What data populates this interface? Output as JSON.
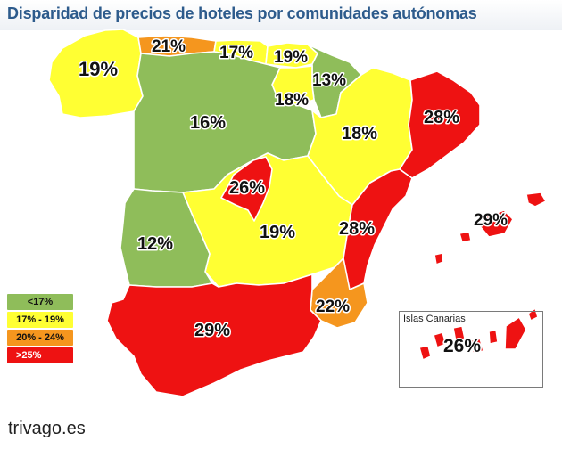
{
  "title": "Disparidad de precios de hoteles por comunidades autónomas",
  "colors": {
    "low": "#8fbd5a",
    "mid": "#ffff33",
    "high": "#f5961e",
    "top": "#ee1212"
  },
  "regions": [
    {
      "id": "galicia",
      "value": "19%",
      "band": "mid"
    },
    {
      "id": "asturias",
      "value": "21%",
      "band": "high"
    },
    {
      "id": "cantabria",
      "value": "17%",
      "band": "mid"
    },
    {
      "id": "pais-vasco",
      "value": "19%",
      "band": "mid"
    },
    {
      "id": "navarra",
      "value": "13%",
      "band": "low"
    },
    {
      "id": "la-rioja",
      "value": "18%",
      "band": "mid"
    },
    {
      "id": "castilla-y-leon",
      "value": "16%",
      "band": "low"
    },
    {
      "id": "aragon",
      "value": "18%",
      "band": "mid"
    },
    {
      "id": "cataluna",
      "value": "28%",
      "band": "top"
    },
    {
      "id": "madrid",
      "value": "26%",
      "band": "top"
    },
    {
      "id": "castilla-la-mancha",
      "value": "19%",
      "band": "mid"
    },
    {
      "id": "comunidad-valenciana",
      "value": "28%",
      "band": "top"
    },
    {
      "id": "extremadura",
      "value": "12%",
      "band": "low"
    },
    {
      "id": "baleares",
      "value": "29%",
      "band": "top"
    },
    {
      "id": "murcia",
      "value": "22%",
      "band": "high"
    },
    {
      "id": "andalucia",
      "value": "29%",
      "band": "top"
    },
    {
      "id": "canarias",
      "value": "26%",
      "band": "top"
    }
  ],
  "legend": [
    {
      "label": "<17%",
      "band": "low"
    },
    {
      "label": "17% - 19%",
      "band": "mid"
    },
    {
      "label": "20% - 24%",
      "band": "high"
    },
    {
      "label": ">25%",
      "band": "top"
    }
  ],
  "canarias_label": "Islas Canarias",
  "brand": "trivago.es"
}
